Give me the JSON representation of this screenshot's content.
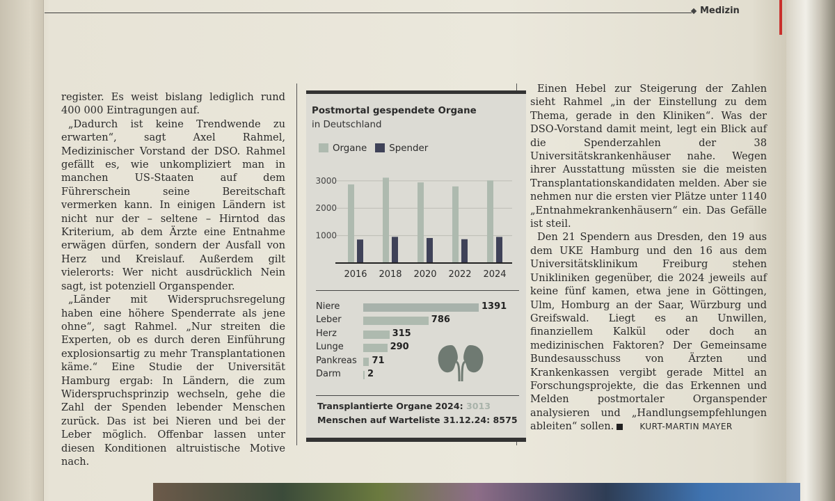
{
  "section_label": "Medizin",
  "left_column": {
    "paragraphs": [
      "register. Es weist bislang lediglich rund 400 000 Eintragungen auf.",
      "„Dadurch ist keine Trendwende zu erwarten“, sagt Axel Rahmel, Medizinischer Vorstand der DSO. Rahmel gefällt es, wie unkompliziert man in manchen US-Staaten auf dem Führerschein seine Bereitschaft vermerken kann. In einigen Ländern ist nicht nur der – seltene – Hirntod das Kriterium, ab dem Ärzte eine Entnahme erwägen dürfen, sondern der Ausfall von Herz und Kreislauf. Außerdem gilt vielerorts: Wer nicht ausdrücklich Nein sagt, ist potenziell Organspender.",
      "„Länder mit Widerspruchsregelung haben eine höhere Spenderrate als jene ohne“, sagt Rahmel. „Nur streiten die Experten, ob es durch deren Einführung explosionsartig zu mehr Transplantationen käme.“ Eine Studie der Universität Hamburg ergab: In Ländern, die zum Widerspruchsprinzip wechseln, gehe die Zahl der Spenden lebender Menschen zurück. Das ist bei Nieren und bei der Leber möglich. Offenbar lassen unter diesen Konditionen altruistische Motive nach."
    ]
  },
  "right_column": {
    "paragraphs": [
      "Einen Hebel zur Steigerung der Zahlen sieht Rahmel „in der Einstellung zu dem Thema, gerade in den Kliniken“. Was der DSO-Vorstand damit meint, legt ein Blick auf die Spenderzahlen der 38 Universitätskrankenhäuser nahe. Wegen ihrer Ausstattung müssten sie die meisten Transplantationskandidaten melden. Aber sie nehmen nur die ersten vier Plätze unter 1140 „Entnahmekrankenhäusern“ ein. Das Gefälle ist steil.",
      "Den 21 Spendern aus Dresden, den 19 aus dem UKE Hamburg und den 16 aus dem Universitätsklinikum Freiburg stehen Unikliniken gegenüber, die 2024 jeweils auf keine fünf kamen, etwa jene in Göttingen, Ulm, Homburg an der Saar, Würzburg und Greifswald. Liegt es an Unwillen, finanziellem Kalkül oder doch an medizinischen Faktoren? Der Gemeinsame Bundesausschuss von Ärzten und Krankenkassen vergibt gerade Mittel an Forschungsprojekte, die das Erkennen und Melden postmortaler Organspender analysieren und „Handlungsempfehlungen ableiten“ sollen."
    ],
    "author": "KURT-MARTIN MAYER"
  },
  "infobox": {
    "title": "Postmortal gespendete Organe",
    "subtitle": "in Deutschland",
    "footer_label_1": "Transplantierte Organe 2024:",
    "footer_value_1": "3013",
    "footer_label_2": "Menschen auf Warteliste 31.12.24:",
    "footer_value_2": "8575"
  },
  "colors": {
    "organe": "#aebaaf",
    "spender": "#3f4258"
  },
  "chart_data": [
    {
      "type": "bar",
      "categories": [
        "2016",
        "2018",
        "2020",
        "2022",
        "2024"
      ],
      "series": [
        {
          "name": "Organe",
          "values": [
            2867,
            3113,
            2941,
            2795,
            3013
          ]
        },
        {
          "name": "Spender",
          "values": [
            857,
            955,
            913,
            869,
            953
          ]
        }
      ],
      "ylim": [
        0,
        3300
      ],
      "yticks": [
        "1000",
        "2000",
        "3000"
      ],
      "legend": "top-left"
    },
    {
      "type": "bar",
      "orientation": "horizontal",
      "categories": [
        "Niere",
        "Leber",
        "Herz",
        "Lunge",
        "Pankreas",
        "Darm"
      ],
      "values": [
        1391,
        786,
        315,
        290,
        71,
        2
      ]
    }
  ]
}
